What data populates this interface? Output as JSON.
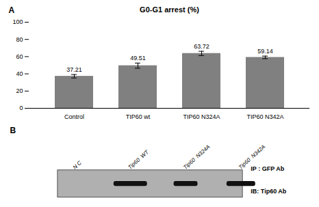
{
  "chart_data": [
    {
      "type": "bar",
      "title": "G0-G1 arrest (%)",
      "categories": [
        "Control",
        "TIP60 wt",
        "TIP60 N324A",
        "TIP60 N342A"
      ],
      "values": [
        37.21,
        49.51,
        63.72,
        59.14
      ],
      "errors": [
        2.0,
        3.0,
        2.5,
        1.5
      ],
      "data_labels": true,
      "color": "#808080",
      "ylim": [
        0,
        100
      ],
      "yticks": [
        0,
        20,
        40,
        60,
        80,
        100
      ],
      "grid": false,
      "annotations": [
        "A"
      ]
    },
    {
      "type": "blot",
      "categories": [
        "N C",
        "Tip60  WT",
        "Tip60  N324A",
        "Tip60  N342A"
      ],
      "values": [
        0,
        1.05,
        0.75,
        0.9
      ],
      "color": "#111111",
      "annotations": [
        "B",
        "IP : GFP Ab",
        "IB: Tip60 Ab"
      ]
    }
  ]
}
